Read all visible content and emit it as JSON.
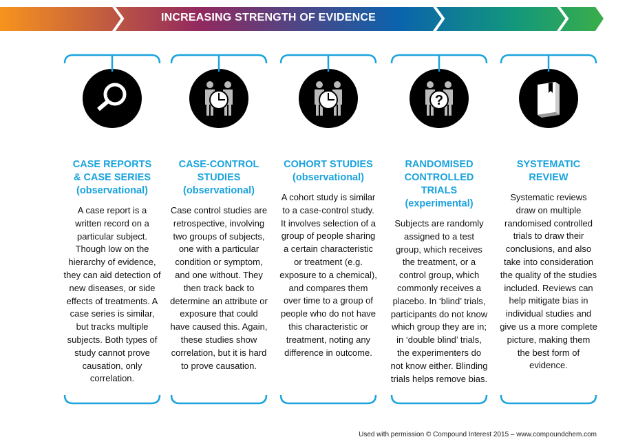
{
  "header": {
    "title": "INCREASING STRENGTH OF EVIDENCE",
    "gradient": [
      "#f7941d",
      "#92295f",
      "#0b63ad",
      "#12977d",
      "#3aae49"
    ]
  },
  "accent": "#1aa3dd",
  "columns": [
    {
      "icon": "magnifying-glass-icon",
      "title": [
        "CASE REPORTS",
        "& CASE SERIES",
        "(observational)"
      ],
      "body": "A case report is a written record on a particular subject. Though low on the hierarchy of evidence, they can aid detection of new diseases, or side effects of treatments. A case series is similar, but tracks multiple subjects. Both types of study cannot prove causation, only correlation."
    },
    {
      "icon": "people-clock-icon",
      "title": [
        "CASE-CONTROL",
        "STUDIES",
        "(observational)"
      ],
      "body": "Case control studies are retrospective, involving two groups of subjects, one with a particular condition or symptom, and one without. They then track back to determine an attribute or exposure that could have caused this. Again, these studies show correlation, but it is hard to prove causation."
    },
    {
      "icon": "people-clock-icon",
      "title": [
        "COHORT STUDIES",
        "(observational)"
      ],
      "body": "A cohort study is similar to a case-control study. It involves selection of a group of people sharing a certain characteristic or treatment (e.g. exposure to a chemical), and compares them over time to a group of people who do not have this characteristic or treatment, noting any difference in outcome."
    },
    {
      "icon": "people-question-icon",
      "title": [
        "RANDOMISED",
        "CONTROLLED",
        "TRIALS",
        "(experimental)"
      ],
      "body": "Subjects are randomly assigned to a test group, which receives the treatment, or a control group, which commonly receives a placebo. In ‘blind’ trials, participants do not know which group they are in; in ‘double blind’ trials, the experimenters do not know either. Blinding trials helps remove bias."
    },
    {
      "icon": "book-icon",
      "title": [
        "SYSTEMATIC",
        "REVIEW"
      ],
      "body": "Systematic reviews draw on multiple randomised controlled trials to draw their conclusions, and also take into consideration the quality of the studies included. Reviews can help mitigate bias in individual studies and give us a more complete picture, making them the best form of evidence."
    }
  ],
  "footer": "Used with permission © Compound Interest 2015 – www.compoundchem.com"
}
